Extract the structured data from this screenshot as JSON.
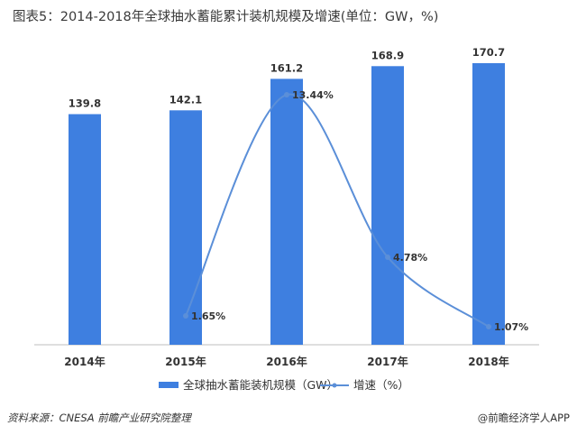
{
  "title": "图表5：2014-2018年全球抽水蓄能累计装机规模及增速(单位：GW，%)",
  "footer": {
    "source": "资料来源：CNESA 前瞻产业研究院整理",
    "brand": "@前瞻经济学人APP"
  },
  "colors": {
    "bar": "#3E7FE0",
    "line": "#5B8FD8",
    "text": "#333333"
  },
  "chart_data": {
    "type": "bar",
    "categories": [
      "2014年",
      "2015年",
      "2016年",
      "2017年",
      "2018年"
    ],
    "series": [
      {
        "name": "全球抽水蓄能装机规模（GW）",
        "kind": "bar",
        "values": [
          139.8,
          142.1,
          161.2,
          168.9,
          170.7
        ],
        "labels": [
          "139.8",
          "142.1",
          "161.2",
          "168.9",
          "170.7"
        ]
      },
      {
        "name": "增速（%）",
        "kind": "line",
        "smooth": true,
        "values": [
          null,
          1.65,
          13.44,
          4.78,
          1.07
        ],
        "labels": [
          "",
          "1.65%",
          "13.44%",
          "4.78%",
          "1.07%"
        ]
      }
    ],
    "legend_position": "bottom",
    "grid": false
  }
}
